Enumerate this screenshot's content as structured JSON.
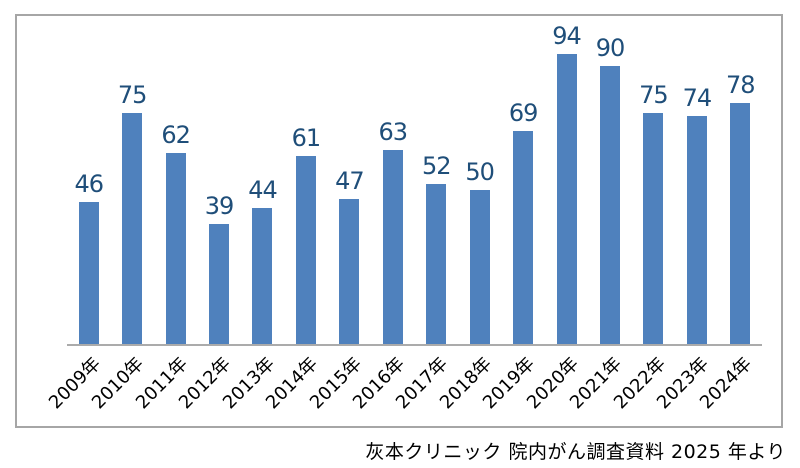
{
  "chart_data": {
    "type": "bar",
    "title": "",
    "xlabel": "",
    "ylabel": "",
    "categories": [
      "2009年",
      "2010年",
      "2011年",
      "2012年",
      "2013年",
      "2014年",
      "2015年",
      "2016年",
      "2017年",
      "2018年",
      "2019年",
      "2020年",
      "2021年",
      "2022年",
      "2023年",
      "2024年"
    ],
    "values": [
      46,
      75,
      62,
      39,
      44,
      61,
      47,
      63,
      52,
      50,
      69,
      94,
      90,
      75,
      74,
      78
    ],
    "ylim": [
      0,
      100
    ],
    "y_axis_visible": false,
    "gridlines": false,
    "data_labels": true,
    "legend": "none",
    "x_tick_rotation_deg": -45,
    "colors": {
      "bar": "#4f81bd",
      "value_label": "#1f4e79",
      "x_label": "#000000",
      "axis_line": "#ababab",
      "frame_border": "#a6a6a6",
      "background": "#ffffff"
    }
  },
  "caption": "灰本クリニック 院内がん調査資料 2025 年より"
}
